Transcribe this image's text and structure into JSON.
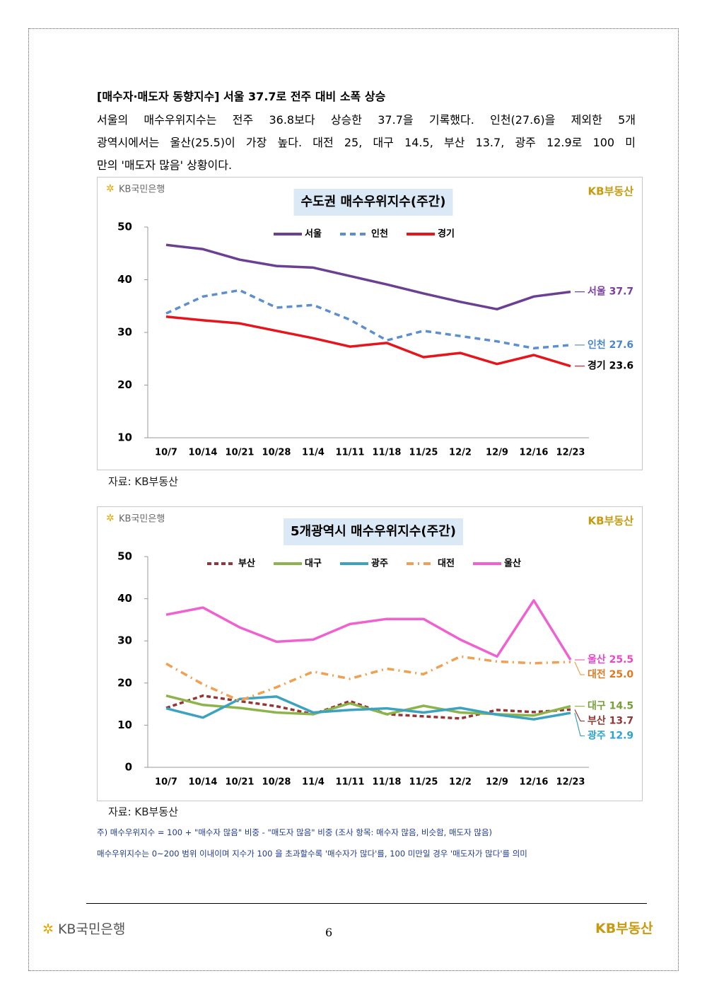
{
  "heading": "[매수자·매도자 동향지수] 서울 37.7로 전주 대비 소폭 상승",
  "paragraph_lines": [
    "서울의 매수우위지수는 전주 36.8보다 상승한 37.7을 기록했다. 인천(27.6)을 제외한 5개",
    "광역시에서는 울산(25.5)이 가장 높다. 대전 25, 대구 14.5, 부산 13.7, 광주 12.9로 100 미",
    "만의 '매도자 많음' 상황이다."
  ],
  "source": "자료: KB부동산",
  "notes": [
    "주) 매수우위지수 = 100 + \"매수자 많음\" 비중 - \"매도자 많음\" 비중  (조사 항목: 매수자 많음, 비슷함, 매도자 많음)",
    "매수우위지수는 0~200 범위 이내이며 지수가 100 을 초과할수록 '매수자가 많다'를, 100 미만일 경우 '매도자가 많다'를 의미"
  ],
  "logos": {
    "bank": "KB국민은행",
    "realty": "KB부동산"
  },
  "page_number": "6",
  "chart_data": [
    {
      "type": "line",
      "title": "수도권 매수우위지수(주간)",
      "categories": [
        "10/7",
        "10/14",
        "10/21",
        "10/28",
        "11/4",
        "11/11",
        "11/18",
        "11/25",
        "12/2",
        "12/9",
        "12/16",
        "12/23"
      ],
      "series": [
        {
          "name": "서울",
          "color": "#6b3f91",
          "dash": "solid",
          "values": [
            46.6,
            45.8,
            43.8,
            42.6,
            42.3,
            40.7,
            39.1,
            37.4,
            35.8,
            34.4,
            36.8,
            37.7
          ],
          "end_label": "서울 37.7",
          "end_label_color": "#7a3fa0"
        },
        {
          "name": "인천",
          "color": "#5b8fd0",
          "dash": "8,6",
          "values": [
            33.6,
            36.8,
            38.0,
            34.7,
            35.2,
            32.4,
            28.5,
            30.3,
            29.3,
            28.3,
            27.0,
            27.6
          ],
          "end_label": "인천 27.6",
          "end_label_color": "#4a86c8"
        },
        {
          "name": "경기",
          "color": "#e8141c",
          "dash": "solid",
          "values": [
            33.0,
            32.3,
            31.7,
            30.3,
            28.9,
            27.3,
            28.0,
            25.3,
            26.1,
            24.0,
            25.7,
            23.6
          ],
          "end_label": "경기 23.6",
          "end_label_color": "#000000"
        }
      ],
      "ylim": [
        10,
        50
      ],
      "yticks": [
        10,
        20,
        30,
        40,
        50
      ],
      "grid": false,
      "legend": "top"
    },
    {
      "type": "line",
      "title": "5개광역시 매수우위지수(주간)",
      "categories": [
        "10/7",
        "10/14",
        "10/21",
        "10/28",
        "11/4",
        "11/11",
        "11/18",
        "11/25",
        "12/2",
        "12/9",
        "12/16",
        "12/23"
      ],
      "series": [
        {
          "name": "부산",
          "color": "#943634",
          "dash": "6,4",
          "values": [
            14.1,
            17.0,
            15.7,
            14.5,
            12.6,
            15.7,
            12.6,
            12.1,
            11.6,
            13.6,
            13.1,
            13.7
          ],
          "end_label": "부산 13.7",
          "end_label_color": "#943634"
        },
        {
          "name": "대구",
          "color": "#8db44a",
          "dash": "solid",
          "values": [
            17.0,
            14.8,
            14.1,
            13.0,
            12.6,
            15.2,
            12.6,
            14.6,
            13.0,
            12.6,
            12.3,
            14.5
          ],
          "end_label": "대구 14.5",
          "end_label_color": "#77a03a"
        },
        {
          "name": "광주",
          "color": "#3ba3c0",
          "dash": "solid",
          "values": [
            14.0,
            11.8,
            16.2,
            16.8,
            13.0,
            13.6,
            14.0,
            13.0,
            14.1,
            12.5,
            11.4,
            12.9
          ],
          "end_label": "광주 12.9",
          "end_label_color": "#2ea3d0"
        },
        {
          "name": "대전",
          "color": "#f0a050",
          "dash": "10,6,2,6",
          "values": [
            24.6,
            19.7,
            15.8,
            19.0,
            22.7,
            21.0,
            23.4,
            22.1,
            26.3,
            25.1,
            24.7,
            25.0
          ],
          "end_label": "대전 25.0",
          "end_label_color": "#e07a20"
        },
        {
          "name": "울산",
          "color": "#f060d0",
          "dash": "solid",
          "values": [
            36.2,
            37.9,
            33.2,
            29.8,
            30.3,
            34.0,
            35.2,
            35.2,
            30.3,
            26.3,
            39.6,
            25.5
          ],
          "end_label": "울산 25.5",
          "end_label_color": "#e848c8"
        }
      ],
      "ylim": [
        0,
        50
      ],
      "yticks": [
        0,
        10,
        20,
        30,
        40,
        50
      ],
      "grid": false,
      "legend": "top"
    }
  ]
}
